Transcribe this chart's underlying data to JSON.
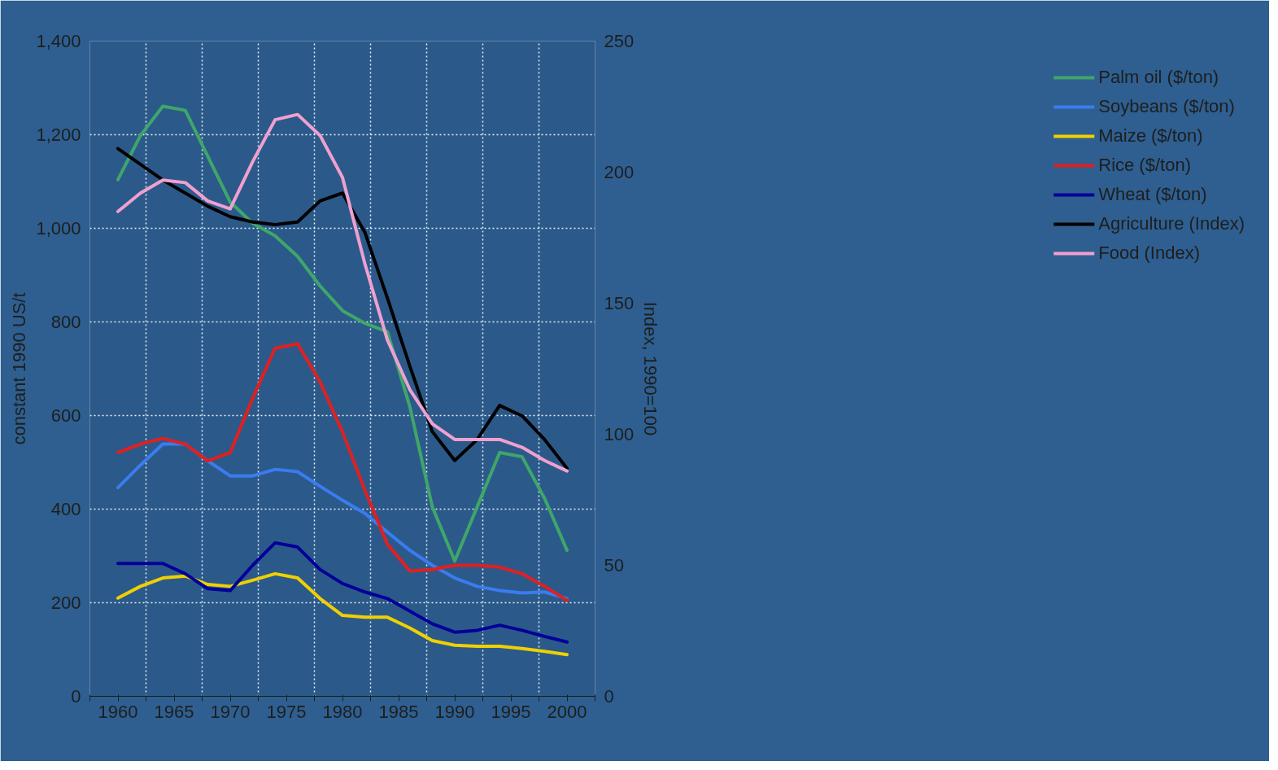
{
  "chart_data": {
    "type": "line",
    "ylabel": "constant 1990 US/t",
    "y2label": "Index, 1990=100",
    "x": [
      1960,
      1962,
      1964,
      1966,
      1968,
      1970,
      1972,
      1974,
      1976,
      1978,
      1980,
      1982,
      1984,
      1986,
      1988,
      1990,
      1992,
      1994,
      1996,
      1998,
      2000
    ],
    "xlim": [
      1957.5,
      2002.5
    ],
    "xticks": [
      {
        "value": 1957.5,
        "label": null
      },
      1960,
      {
        "value": 1962.5,
        "label": null
      },
      1965,
      {
        "value": 1967.5,
        "label": null
      },
      1970,
      {
        "value": 1972.5,
        "label": null
      },
      1975,
      {
        "value": 1977.5,
        "label": null
      },
      1980,
      {
        "value": 1982.5,
        "label": null
      },
      1985,
      {
        "value": 1987.5,
        "label": null
      },
      1990,
      {
        "value": 1992.5,
        "label": null
      },
      1995,
      {
        "value": 1997.5,
        "label": null
      },
      2000,
      {
        "value": 2002.5,
        "label": null
      }
    ],
    "ylim": [
      0,
      1400
    ],
    "yticks": [
      {
        "value": 0,
        "label": "0"
      },
      {
        "value": 200,
        "label": "200"
      },
      {
        "value": 400,
        "label": "400"
      },
      {
        "value": 600,
        "label": "600"
      },
      {
        "value": 800,
        "label": "800"
      },
      {
        "value": 1000,
        "label": "1,000"
      },
      {
        "value": 1200,
        "label": "1,200"
      },
      {
        "value": 1400,
        "label": "1,400"
      }
    ],
    "y2lim": [
      0,
      250
    ],
    "y2ticks": [
      0,
      50,
      100,
      150,
      200,
      250
    ],
    "grid": true,
    "legend": "right",
    "marker": "none",
    "line_style": "solid",
    "series": [
      {
        "name": "Palm oil ($/ton)",
        "color": "#3fa66a",
        "values": [
          1104,
          1198,
          1261,
          1252,
          1154,
          1056,
          1011,
          984,
          940,
          877,
          824,
          797,
          779,
          619,
          405,
          289,
          405,
          521,
          512,
          423,
          312
        ]
      },
      {
        "name": "Soybeans ($/ton)",
        "color": "#3a7cf0",
        "values": [
          446,
          494,
          539,
          539,
          503,
          471,
          471,
          485,
          480,
          449,
          419,
          391,
          351,
          312,
          280,
          253,
          235,
          226,
          221,
          223,
          209
        ]
      },
      {
        "name": "Maize ($/ton)",
        "color": "#f0d000",
        "values": [
          210,
          235,
          253,
          257,
          239,
          235,
          248,
          262,
          253,
          209,
          173,
          169,
          169,
          146,
          119,
          109,
          107,
          107,
          102,
          96,
          89
        ]
      },
      {
        "name": "Rice ($/ton)",
        "color": "#e02020",
        "values": [
          521,
          539,
          551,
          539,
          503,
          521,
          637,
          744,
          753,
          672,
          565,
          440,
          325,
          268,
          271,
          280,
          280,
          276,
          262,
          235,
          205
        ]
      },
      {
        "name": "Wheat ($/ton)",
        "color": "#000099",
        "values": [
          284,
          284,
          284,
          262,
          230,
          226,
          280,
          328,
          319,
          271,
          241,
          223,
          209,
          182,
          155,
          137,
          141,
          152,
          141,
          128,
          116
        ]
      },
      {
        "name": "Agriculture (Index)",
        "color": "#000000",
        "axis": "y2",
        "values": [
          209,
          203,
          197,
          192,
          187,
          183,
          181,
          180,
          181,
          189,
          192,
          177,
          152,
          126,
          101,
          90,
          98,
          111,
          107,
          98,
          87
        ]
      },
      {
        "name": "Food (Index)",
        "color": "#f0a0d0",
        "axis": "y2",
        "values": [
          185,
          192,
          197,
          196,
          189,
          186,
          204,
          220,
          222,
          214,
          198,
          165,
          136,
          117,
          104,
          98,
          98,
          98,
          95,
          90,
          86
        ]
      }
    ]
  }
}
